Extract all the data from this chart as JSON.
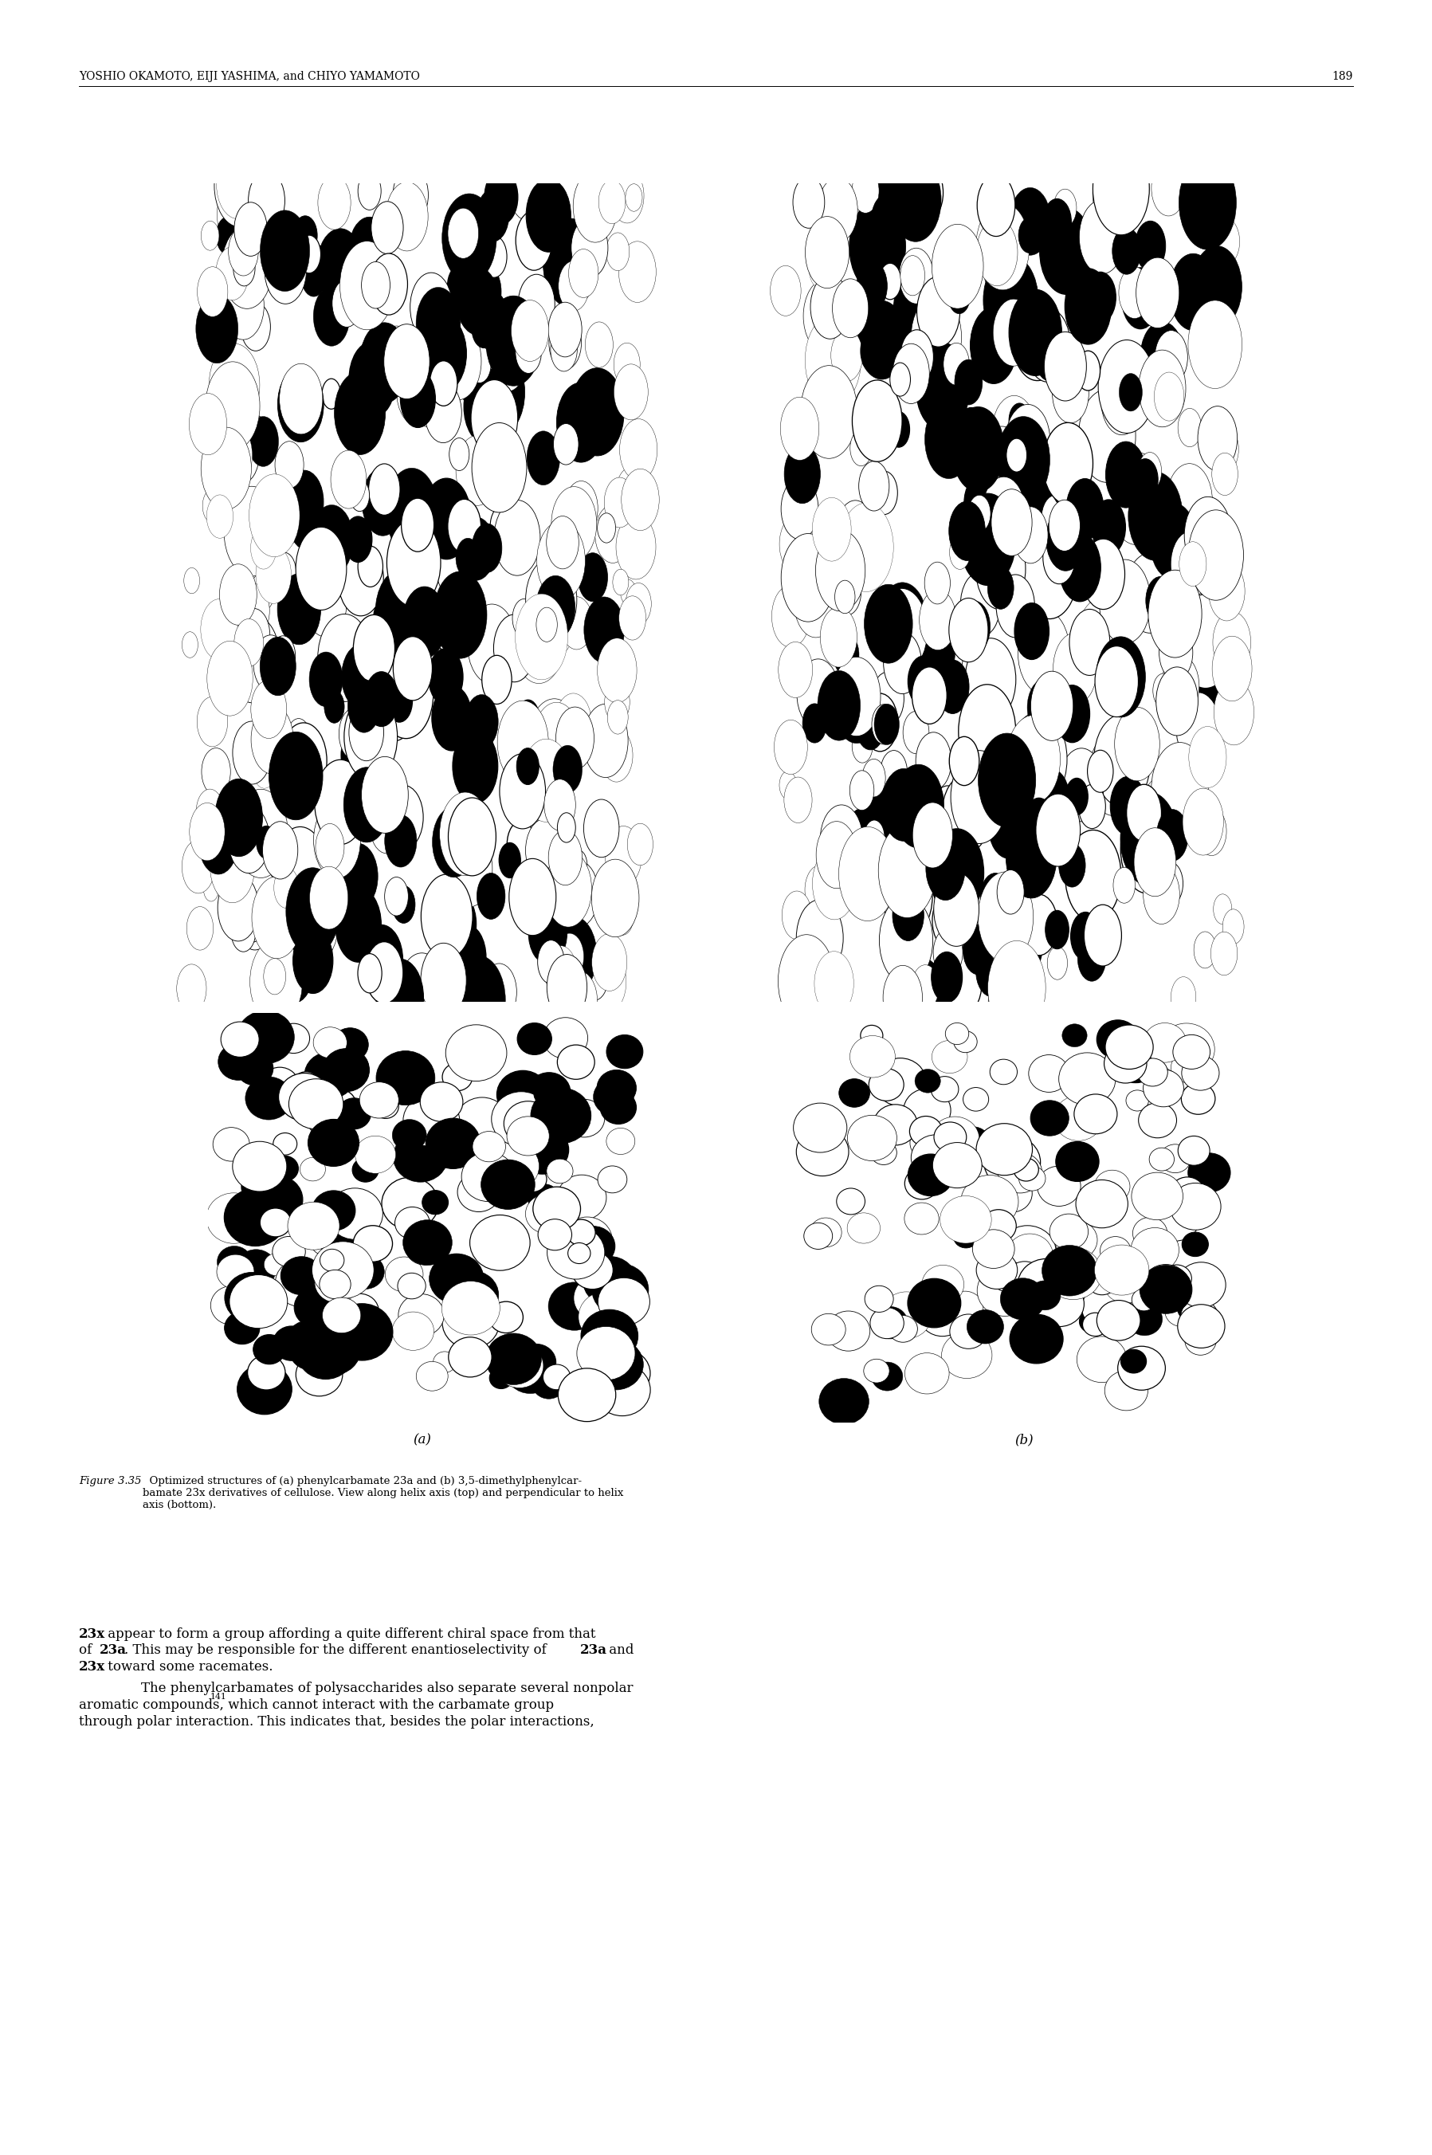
{
  "page_width": 17.97,
  "page_height": 27.04,
  "background_color": "#ffffff",
  "header_text": "YOSHIO OKAMOTO, EIJI YASHIMA, and CHIYO YAMAMOTO",
  "header_page": "189",
  "header_fontsize": 10,
  "label_a": "(a)",
  "label_b": "(b)",
  "label_fontsize": 12,
  "caption_prefix": "Figure 3.35",
  "caption_body": "  Optimized structures of (a) phenylcarbamate 23a and (b) 3,5-dimethylphenylcar-\nbamate 23x derivatives of cellulose. View along helix axis (top) and perpendicular to helix\naxis (bottom).",
  "caption_fontsize": 9.5,
  "body_fontsize": 12.0,
  "para1_line1_bold": "23x",
  "para1_line1_normal": " appear to form a group affording a quite different chiral space from that",
  "para1_line2_normal1": "of ",
  "para1_line2_bold2": "23a",
  "para1_line2_normal2": ". This may be responsible for the different enantioselectivity of ",
  "para1_line2_bold3": "23a",
  "para1_line2_normal3": " and",
  "para1_line3_bold": "23x",
  "para1_line3_normal": " toward some racemates.",
  "para2_indent": "    The phenylcarbamates of polysaccharides also separate several nonpolar",
  "para2_line2_pre": "aromatic compounds,",
  "para2_line2_sup": "141",
  "para2_line2_post": " which cannot interact with the carbamate group",
  "para2_line3": "through polar interaction. This indicates that, besides the polar interactions,"
}
